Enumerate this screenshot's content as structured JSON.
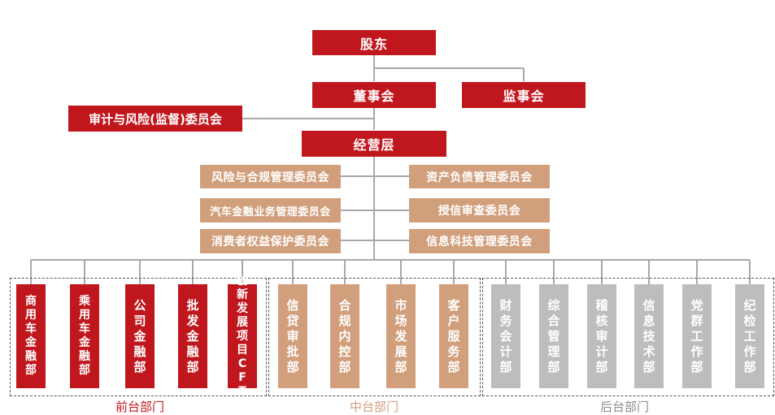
{
  "colors": {
    "red": "#c0171e",
    "tan": "#d19f7c",
    "gray": "#bdbdbd",
    "line": "#a8a8a8",
    "front_label": "#c0171e",
    "middle_label": "#d19f7c",
    "back_label": "#8c8c8c"
  },
  "nodes": {
    "shareholders": "股东",
    "board": "董事会",
    "supervisors": "监事会",
    "audit_committee": "审计与风险(监督)委员会",
    "management": "经营层"
  },
  "committees": {
    "left": [
      "风险与合规管理委员会",
      "汽车金融业务管理委员会",
      "消费者权益保护委员会"
    ],
    "right": [
      "资产负债管理委员会",
      "授信审查委员会",
      "信息科技管理委员会"
    ]
  },
  "departments": {
    "front": [
      "商用车金融部",
      "乘用车金融部",
      "公司金融部",
      "批发金融部",
      "创新发展项目CFT"
    ],
    "middle": [
      "信贷审批部",
      "合规内控部",
      "市场发展部",
      "客户服务部"
    ],
    "back": [
      "财务会计部",
      "综合管理部",
      "稽核审计部",
      "信息技术部",
      "党群工作部",
      "纪检工作部"
    ]
  },
  "groups": {
    "front": "前台部门",
    "middle": "中台部门",
    "back": "后台部门"
  }
}
